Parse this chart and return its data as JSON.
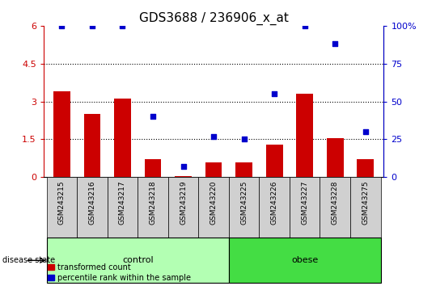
{
  "title": "GDS3688 / 236906_x_at",
  "categories": [
    "GSM243215",
    "GSM243216",
    "GSM243217",
    "GSM243218",
    "GSM243219",
    "GSM243220",
    "GSM243225",
    "GSM243226",
    "GSM243227",
    "GSM243228",
    "GSM243275"
  ],
  "bar_values": [
    3.4,
    2.5,
    3.1,
    0.7,
    0.05,
    0.6,
    0.6,
    1.3,
    3.3,
    1.55,
    0.7
  ],
  "scatter_values": [
    100,
    100,
    100,
    40,
    7,
    27,
    25,
    55,
    100,
    88,
    30
  ],
  "ylim_left": [
    0,
    6
  ],
  "ylim_right": [
    0,
    100
  ],
  "yticks_left": [
    0,
    1.5,
    3.0,
    4.5,
    6.0
  ],
  "ytick_labels_left": [
    "0",
    "1.5",
    "3",
    "4.5",
    "6"
  ],
  "yticks_right": [
    0,
    25,
    50,
    75,
    100
  ],
  "ytick_labels_right": [
    "0",
    "25",
    "50",
    "75",
    "100%"
  ],
  "bar_color": "#cc0000",
  "scatter_color": "#0000cc",
  "n_control": 6,
  "control_color": "#b3ffb3",
  "obese_color": "#44dd44",
  "tick_area_color": "#d0d0d0",
  "disease_state_label": "disease state",
  "control_label": "control",
  "obese_label": "obese",
  "legend_bar_label": "transformed count",
  "legend_scatter_label": "percentile rank within the sample",
  "grid_yticks": [
    1.5,
    3.0,
    4.5
  ]
}
